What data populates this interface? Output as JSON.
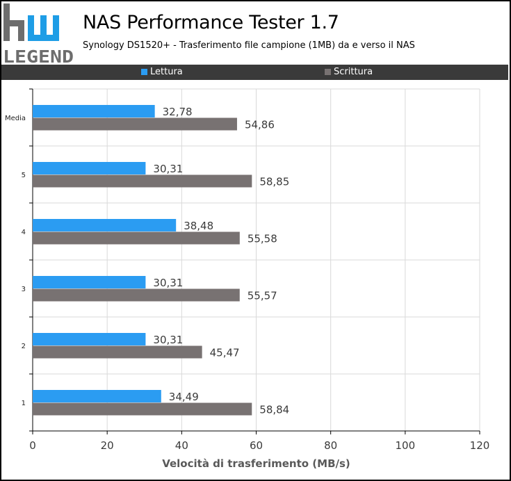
{
  "header": {
    "title": "NAS Performance Tester 1.7",
    "subtitle": "Synology DS1520+ - Trasferimento file campione (1MB) da e verso il NAS",
    "logo_text": "hw LEGEND"
  },
  "colors": {
    "lettura": "#2b9cf2",
    "scrittura": "#787272",
    "legend_bg": "#3a3a3a",
    "grid": "#d9d9d9",
    "logo_dark": "#6d6d6d",
    "logo_blue": "#1e9de6"
  },
  "chart_data": {
    "type": "bar",
    "orientation": "horizontal",
    "categories": [
      "Media",
      "5",
      "4",
      "3",
      "2",
      "1"
    ],
    "series": [
      {
        "name": "Lettura",
        "values": [
          32.78,
          30.31,
          38.48,
          30.31,
          30.31,
          34.49
        ],
        "labels": [
          "32,78",
          "30,31",
          "38,48",
          "30,31",
          "30,31",
          "34,49"
        ]
      },
      {
        "name": "Scrittura",
        "values": [
          54.86,
          58.85,
          55.58,
          55.57,
          45.47,
          58.84
        ],
        "labels": [
          "54,86",
          "58,85",
          "55,58",
          "55,57",
          "45,47",
          "58,84"
        ]
      }
    ],
    "xlabel": "Velocità di trasferimento (MB/s)",
    "xlim": [
      0,
      120
    ],
    "xticks": [
      "0",
      "20",
      "40",
      "60",
      "80",
      "100",
      "120"
    ],
    "grid": true,
    "legend_position": "top"
  }
}
